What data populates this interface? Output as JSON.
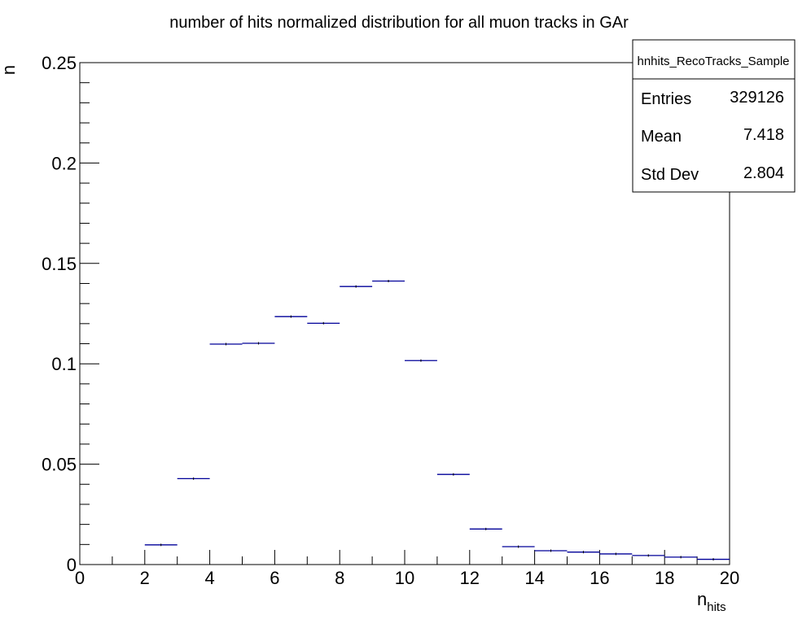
{
  "chart_data": {
    "type": "histogram",
    "title": "number of hits normalized distribution for all muon tracks in GAr",
    "xlabel_main": "n",
    "xlabel_sub": "hits",
    "ylabel": "n",
    "xlim": [
      0,
      20
    ],
    "ylim": [
      0,
      0.25
    ],
    "x_ticks": [
      "0",
      "2",
      "4",
      "6",
      "8",
      "10",
      "12",
      "14",
      "16",
      "18",
      "20"
    ],
    "y_ticks": [
      "0",
      "0.05",
      "0.1",
      "0.15",
      "0.2",
      "0.25"
    ],
    "bin_width": 1,
    "bins": [
      {
        "x": 2.5,
        "y": 0.0098
      },
      {
        "x": 3.5,
        "y": 0.0428
      },
      {
        "x": 4.5,
        "y": 0.1098
      },
      {
        "x": 5.5,
        "y": 0.1102
      },
      {
        "x": 6.5,
        "y": 0.1235
      },
      {
        "x": 7.5,
        "y": 0.1202
      },
      {
        "x": 8.5,
        "y": 0.1385
      },
      {
        "x": 9.5,
        "y": 0.1412
      },
      {
        "x": 10.5,
        "y": 0.1016
      },
      {
        "x": 11.5,
        "y": 0.0449
      },
      {
        "x": 12.5,
        "y": 0.0177
      },
      {
        "x": 13.5,
        "y": 0.0089
      },
      {
        "x": 14.5,
        "y": 0.0069
      },
      {
        "x": 15.5,
        "y": 0.0062
      },
      {
        "x": 16.5,
        "y": 0.0053
      },
      {
        "x": 17.5,
        "y": 0.0045
      },
      {
        "x": 18.5,
        "y": 0.0037
      },
      {
        "x": 19.5,
        "y": 0.0026
      }
    ],
    "series_color": "#000099",
    "stats_box": {
      "name": "hnhits_RecoTracks_Sample",
      "rows": [
        {
          "label": "Entries",
          "value": "329126"
        },
        {
          "label": "Mean",
          "value": "7.418"
        },
        {
          "label": "Std Dev",
          "value": "2.804"
        }
      ]
    }
  }
}
